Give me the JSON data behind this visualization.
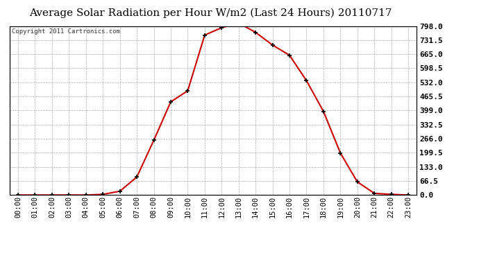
{
  "title": "Average Solar Radiation per Hour W/m2 (Last 24 Hours) 20110717",
  "copyright_text": "Copyright 2011 Cartronics.com",
  "hours": [
    "00:00",
    "01:00",
    "02:00",
    "03:00",
    "04:00",
    "05:00",
    "06:00",
    "07:00",
    "08:00",
    "09:00",
    "10:00",
    "11:00",
    "12:00",
    "13:00",
    "14:00",
    "15:00",
    "16:00",
    "17:00",
    "18:00",
    "19:00",
    "20:00",
    "21:00",
    "22:00",
    "23:00"
  ],
  "values": [
    0.0,
    0.0,
    0.0,
    0.0,
    0.0,
    3.0,
    18.0,
    85.0,
    258.0,
    440.0,
    492.0,
    755.0,
    790.0,
    812.0,
    768.0,
    708.0,
    660.0,
    540.0,
    395.0,
    198.0,
    62.0,
    8.0,
    3.0,
    0.0
  ],
  "yticks": [
    0.0,
    66.5,
    133.0,
    199.5,
    266.0,
    332.5,
    399.0,
    465.5,
    532.0,
    598.5,
    665.0,
    731.5,
    798.0
  ],
  "ylim": [
    0.0,
    798.0
  ],
  "line_color": "#cc0000",
  "marker_color": "#000000",
  "bg_color": "#ffffff",
  "plot_bg_color": "#ffffff",
  "grid_color": "#aaaaaa",
  "title_fontsize": 11,
  "copyright_fontsize": 6.5,
  "tick_fontsize": 7.5,
  "ytick_fontsize": 8
}
